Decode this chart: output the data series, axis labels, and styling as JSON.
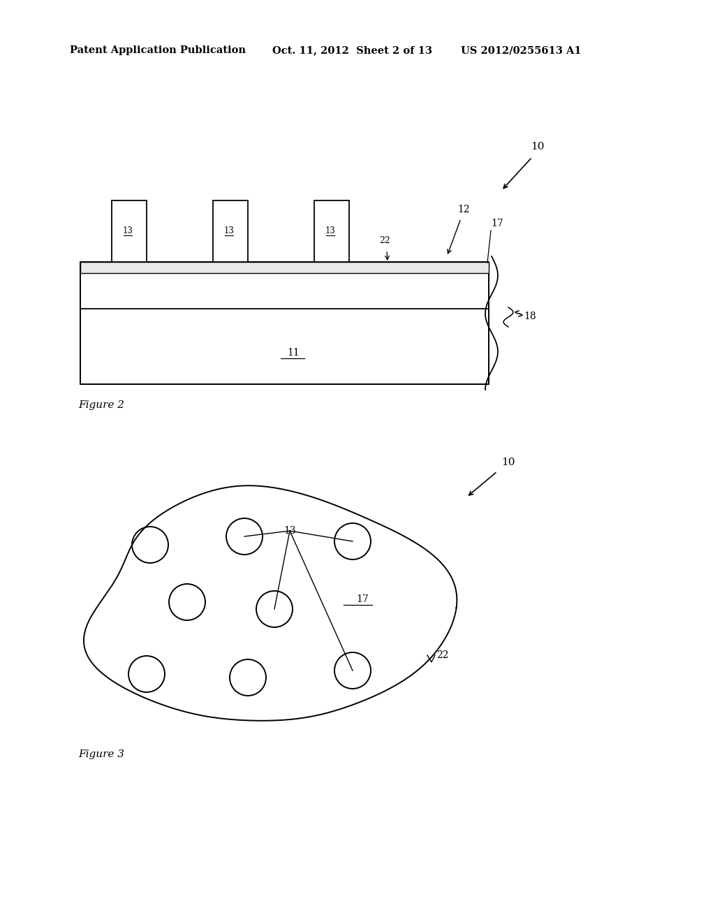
{
  "bg_color": "#ffffff",
  "header_text": "Patent Application Publication",
  "header_date": "Oct. 11, 2012  Sheet 2 of 13",
  "header_patent": "US 2012/0255613 A1",
  "fig2_label": "Figure 2",
  "fig3_label": "Figure 3",
  "ref10": "10",
  "ref11": "11",
  "ref12": "12",
  "ref13": "13",
  "ref17": "17",
  "ref18": "18",
  "ref22": "22"
}
